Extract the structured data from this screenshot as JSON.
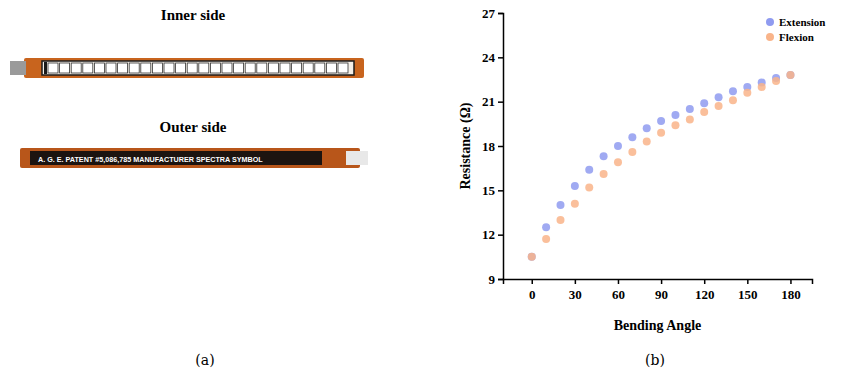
{
  "panel_a": {
    "labels": [
      "Inner side",
      "Outer side"
    ],
    "sensor_text": "A. G. E.  PATENT #5,086,785 MANUFACTURER SPECTRA SYMBOL",
    "caption": "(a)"
  },
  "chart_data": {
    "type": "scatter",
    "caption": "(b)",
    "x_label": "Bending Angle",
    "y_label": "Resistance (Ω)",
    "x": [
      0,
      10,
      20,
      30,
      40,
      50,
      60,
      70,
      80,
      90,
      100,
      110,
      120,
      130,
      140,
      150,
      160,
      170,
      180
    ],
    "series": [
      {
        "name": "Extension",
        "color": "#8f9bf0",
        "marker": "circle",
        "values": [
          10.5,
          12.5,
          14.0,
          15.3,
          16.4,
          17.3,
          18.0,
          18.6,
          19.2,
          19.7,
          20.1,
          20.5,
          20.9,
          21.3,
          21.7,
          22.0,
          22.3,
          22.6,
          22.8
        ]
      },
      {
        "name": "Flexion",
        "color": "#f9b48a",
        "marker": "circle",
        "values": [
          10.5,
          11.7,
          13.0,
          14.1,
          15.2,
          16.1,
          16.9,
          17.6,
          18.3,
          18.9,
          19.4,
          19.8,
          20.3,
          20.7,
          21.1,
          21.6,
          22.0,
          22.4,
          22.8
        ]
      }
    ],
    "xlim": [
      -20,
      195
    ],
    "xticks": [
      0,
      30,
      60,
      90,
      120,
      150,
      180
    ],
    "ylim": [
      9,
      27
    ],
    "yticks": [
      9,
      12,
      15,
      18,
      21,
      24,
      27
    ],
    "legend": "upper right",
    "grid": false
  }
}
